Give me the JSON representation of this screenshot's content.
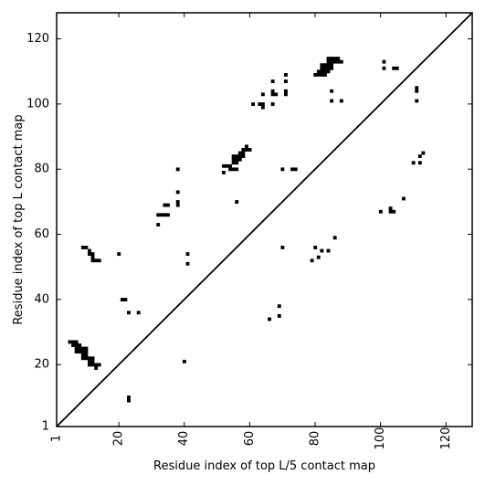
{
  "chart_data": {
    "type": "scatter",
    "title": "",
    "xlabel": "Residue index of top L/5 contact map",
    "ylabel": "Residue index of top L contact map",
    "xlim": [
      1,
      128
    ],
    "ylim": [
      1,
      128
    ],
    "xticks": [
      1,
      20,
      40,
      60,
      80,
      100,
      120
    ],
    "yticks": [
      1,
      20,
      40,
      60,
      80,
      100,
      120
    ],
    "xtick_labels": [
      "1",
      "20",
      "40",
      "60",
      "80",
      "100",
      "120"
    ],
    "ytick_labels": [
      "1",
      "20",
      "40",
      "60",
      "80",
      "100",
      "120"
    ],
    "xtick_rotation": 270,
    "grid": false,
    "legend": "none",
    "marker_color": "#000000",
    "diagonal": {
      "from": [
        1,
        1
      ],
      "to": [
        128,
        128
      ]
    },
    "series": [
      {
        "points": [
          [
            5,
            27
          ],
          [
            6,
            27
          ],
          [
            7,
            27
          ],
          [
            6,
            26
          ],
          [
            7,
            26
          ],
          [
            8,
            26
          ],
          [
            7,
            25
          ],
          [
            8,
            25
          ],
          [
            9,
            25
          ],
          [
            10,
            25
          ],
          [
            7,
            24
          ],
          [
            8,
            24
          ],
          [
            9,
            24
          ],
          [
            10,
            24
          ],
          [
            9,
            23
          ],
          [
            10,
            23
          ],
          [
            9,
            22
          ],
          [
            10,
            22
          ],
          [
            11,
            22
          ],
          [
            12,
            22
          ],
          [
            11,
            21
          ],
          [
            12,
            21
          ],
          [
            11,
            20
          ],
          [
            12,
            20
          ],
          [
            13,
            20
          ],
          [
            14,
            20
          ],
          [
            13,
            19
          ],
          [
            9,
            56
          ],
          [
            10,
            56
          ],
          [
            11,
            55
          ],
          [
            11,
            54
          ],
          [
            12,
            54
          ],
          [
            12,
            53
          ],
          [
            12,
            52
          ],
          [
            13,
            52
          ],
          [
            14,
            52
          ],
          [
            20,
            54
          ],
          [
            21,
            40
          ],
          [
            22,
            40
          ],
          [
            23,
            36
          ],
          [
            26,
            36
          ],
          [
            23,
            10
          ],
          [
            23,
            9
          ],
          [
            32,
            66
          ],
          [
            33,
            66
          ],
          [
            34,
            66
          ],
          [
            35,
            66
          ],
          [
            34,
            69
          ],
          [
            35,
            69
          ],
          [
            32,
            63
          ],
          [
            38,
            80
          ],
          [
            38,
            73
          ],
          [
            38,
            70
          ],
          [
            38,
            69
          ],
          [
            41,
            54
          ],
          [
            41,
            51
          ],
          [
            40,
            21
          ],
          [
            52,
            81
          ],
          [
            53,
            81
          ],
          [
            54,
            81
          ],
          [
            52,
            79
          ],
          [
            54,
            80
          ],
          [
            55,
            80
          ],
          [
            56,
            80
          ],
          [
            56,
            70
          ],
          [
            55,
            82
          ],
          [
            56,
            82
          ],
          [
            55,
            83
          ],
          [
            56,
            83
          ],
          [
            57,
            83
          ],
          [
            55,
            84
          ],
          [
            56,
            84
          ],
          [
            57,
            84
          ],
          [
            58,
            84
          ],
          [
            57,
            85
          ],
          [
            58,
            85
          ],
          [
            58,
            86
          ],
          [
            59,
            86
          ],
          [
            60,
            86
          ],
          [
            59,
            87
          ],
          [
            61,
            100
          ],
          [
            63,
            100
          ],
          [
            64,
            100
          ],
          [
            64,
            99
          ],
          [
            64,
            103
          ],
          [
            67,
            104
          ],
          [
            67,
            103
          ],
          [
            68,
            103
          ],
          [
            67,
            107
          ],
          [
            67,
            100
          ],
          [
            71,
            109
          ],
          [
            71,
            107
          ],
          [
            71,
            104
          ],
          [
            71,
            103
          ],
          [
            70,
            80
          ],
          [
            73,
            80
          ],
          [
            74,
            80
          ],
          [
            70,
            56
          ],
          [
            69,
            38
          ],
          [
            69,
            35
          ],
          [
            66,
            34
          ],
          [
            79,
            52
          ],
          [
            80,
            56
          ],
          [
            81,
            53
          ],
          [
            82,
            55
          ],
          [
            84,
            55
          ],
          [
            86,
            59
          ],
          [
            80,
            109
          ],
          [
            81,
            109
          ],
          [
            82,
            109
          ],
          [
            83,
            109
          ],
          [
            81,
            110
          ],
          [
            82,
            110
          ],
          [
            83,
            110
          ],
          [
            84,
            110
          ],
          [
            82,
            111
          ],
          [
            83,
            111
          ],
          [
            84,
            111
          ],
          [
            85,
            111
          ],
          [
            82,
            112
          ],
          [
            83,
            112
          ],
          [
            84,
            112
          ],
          [
            85,
            112
          ],
          [
            84,
            113
          ],
          [
            85,
            113
          ],
          [
            86,
            113
          ],
          [
            87,
            113
          ],
          [
            88,
            113
          ],
          [
            84,
            114
          ],
          [
            85,
            114
          ],
          [
            86,
            114
          ],
          [
            87,
            114
          ],
          [
            85,
            104
          ],
          [
            85,
            101
          ],
          [
            88,
            101
          ],
          [
            101,
            113
          ],
          [
            101,
            111
          ],
          [
            104,
            111
          ],
          [
            105,
            111
          ],
          [
            111,
            105
          ],
          [
            111,
            104
          ],
          [
            111,
            101
          ],
          [
            100,
            67
          ],
          [
            103,
            68
          ],
          [
            103,
            67
          ],
          [
            104,
            67
          ],
          [
            107,
            71
          ],
          [
            110,
            82
          ],
          [
            112,
            82
          ],
          [
            112,
            84
          ],
          [
            113,
            85
          ]
        ]
      }
    ]
  }
}
